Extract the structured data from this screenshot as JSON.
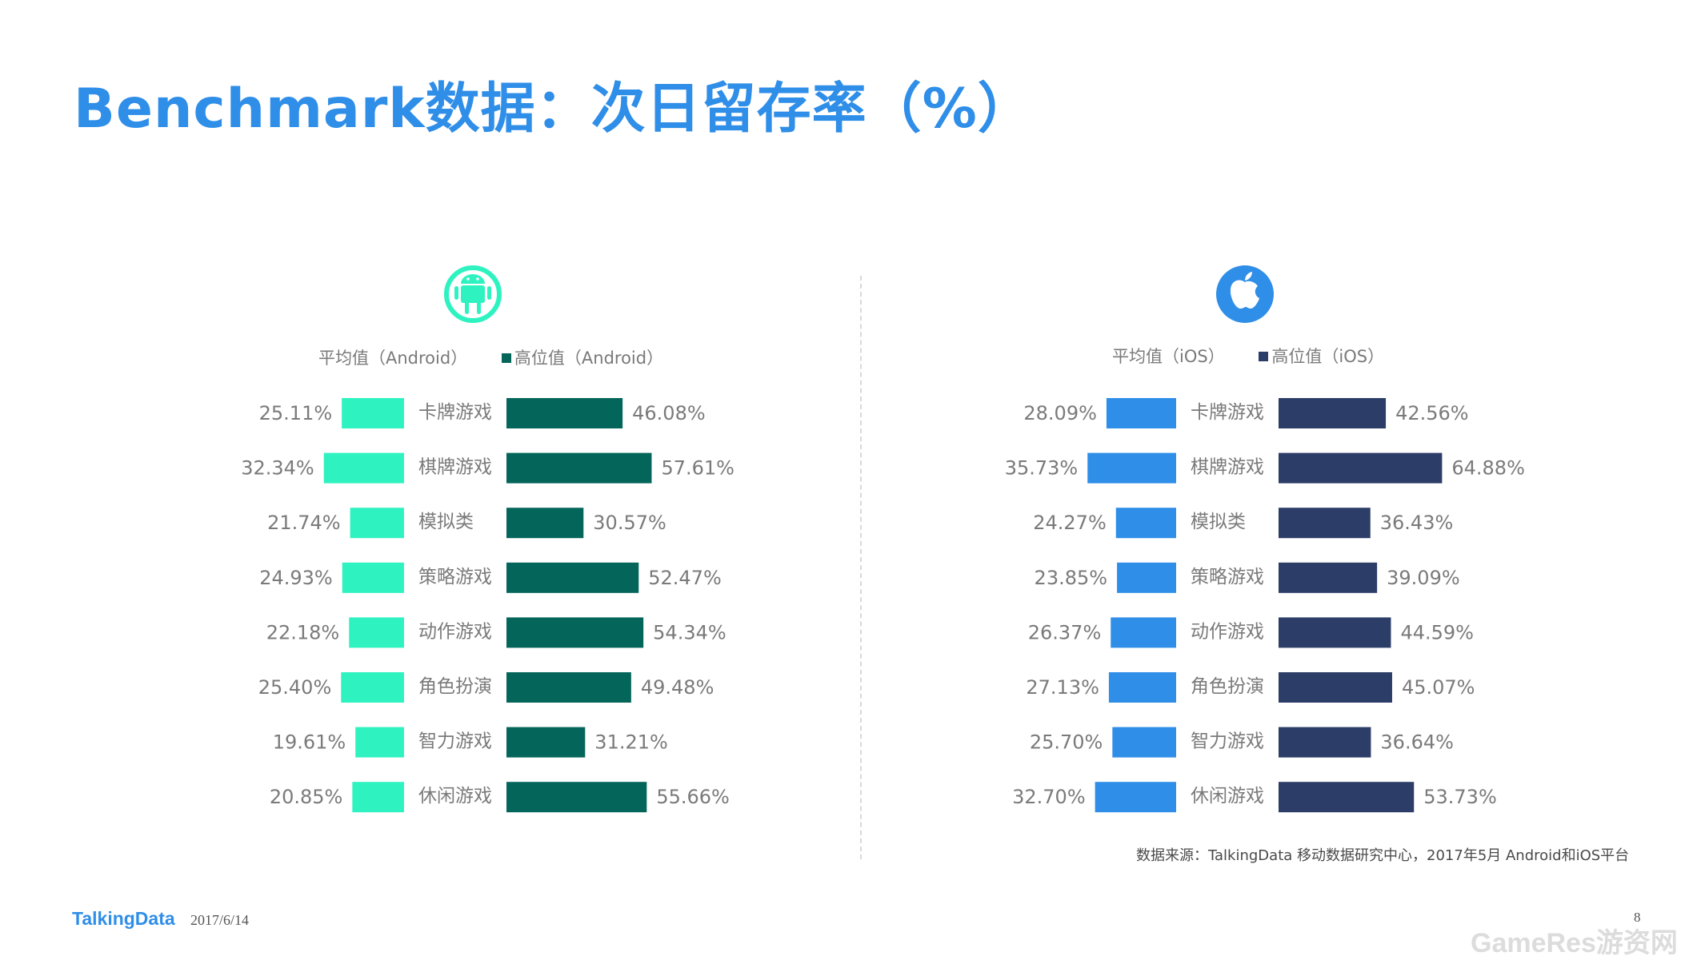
{
  "title": "Benchmark数据：次日留存率（%）",
  "legends": {
    "android": {
      "avg": "平均值（Android）",
      "high": "高位值（Android）"
    },
    "ios": {
      "avg": "平均值（iOS）",
      "high": "高位值（iOS）"
    }
  },
  "colors": {
    "title": "#2f8ee8",
    "android_avg": "#2ef3c0",
    "android_high": "#04665a",
    "ios_avg": "#2f8ee8",
    "ios_high": "#2c3d67",
    "android_icon": "#2ef3c0",
    "ios_icon": "#2f8ee8"
  },
  "icons": {
    "android": "android-icon",
    "ios": "apple-icon"
  },
  "chart_data": [
    {
      "type": "bar",
      "platform": "Android",
      "categories": [
        "卡牌游戏",
        "棋牌游戏",
        "模拟类",
        "策略游戏",
        "动作游戏",
        "角色扮演",
        "智力游戏",
        "休闲游戏"
      ],
      "series": [
        {
          "name": "平均值（Android）",
          "values": [
            25.11,
            32.34,
            21.74,
            24.93,
            22.18,
            25.4,
            19.61,
            20.85
          ],
          "labels": [
            "25.11%",
            "32.34%",
            "21.74%",
            "24.93%",
            "22.18%",
            "25.40%",
            "19.61%",
            "20.85%"
          ]
        },
        {
          "name": "高位值（Android）",
          "values": [
            46.08,
            57.61,
            30.57,
            52.47,
            54.34,
            49.48,
            31.21,
            55.66
          ],
          "labels": [
            "46.08%",
            "57.61%",
            "30.57%",
            "52.47%",
            "54.34%",
            "49.48%",
            "31.21%",
            "55.66%"
          ]
        }
      ]
    },
    {
      "type": "bar",
      "platform": "iOS",
      "categories": [
        "卡牌游戏",
        "棋牌游戏",
        "模拟类",
        "策略游戏",
        "动作游戏",
        "角色扮演",
        "智力游戏",
        "休闲游戏"
      ],
      "series": [
        {
          "name": "平均值（iOS）",
          "values": [
            28.09,
            35.73,
            24.27,
            23.85,
            26.37,
            27.13,
            25.7,
            32.7
          ],
          "labels": [
            "28.09%",
            "35.73%",
            "24.27%",
            "23.85%",
            "26.37%",
            "27.13%",
            "25.70%",
            "32.70%"
          ]
        },
        {
          "name": "高位值（iOS）",
          "values": [
            42.56,
            64.88,
            36.43,
            39.09,
            44.59,
            45.07,
            36.64,
            53.73
          ],
          "labels": [
            "42.56%",
            "64.88%",
            "36.43%",
            "39.09%",
            "44.59%",
            "45.07%",
            "36.64%",
            "53.73%"
          ]
        }
      ]
    }
  ],
  "source": "数据来源：TalkingData 移动数据研究中心，2017年5月 Android和iOS平台",
  "footer": {
    "logo": "TalkingData",
    "date": "2017/6/14",
    "page": "8"
  },
  "watermark": "GameRes游资网"
}
